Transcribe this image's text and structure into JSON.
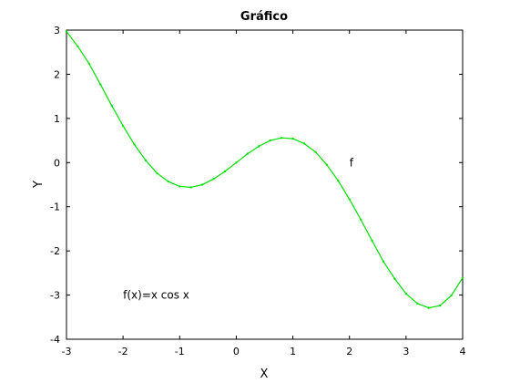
{
  "chart_data": {
    "type": "line",
    "title": "Gráfico",
    "xlabel": "X",
    "ylabel": "Y",
    "xlim": [
      -3,
      4
    ],
    "ylim": [
      -4,
      3
    ],
    "grid": false,
    "x_ticks": [
      "-3",
      "-2",
      "-1",
      "0",
      "1",
      "2",
      "3",
      "4"
    ],
    "y_ticks": [
      "-4",
      "-3",
      "-2",
      "-1",
      "0",
      "1",
      "2",
      "3"
    ],
    "series": [
      {
        "color": "#00e000",
        "x": [
          -3,
          -2.8,
          -2.6,
          -2.4,
          -2.2,
          -2,
          -1.8,
          -1.6,
          -1.4,
          -1.2,
          -1,
          -0.8,
          -0.6,
          -0.4,
          -0.2,
          0,
          0.2,
          0.4,
          0.6,
          0.8,
          1,
          1.2,
          1.4,
          1.6,
          1.8,
          2,
          2.2,
          2.4,
          2.6,
          2.8,
          3,
          3.2,
          3.4,
          3.6,
          3.8,
          4
        ],
        "y": [
          2.97,
          2.63,
          2.24,
          1.77,
          1.29,
          0.83,
          0.41,
          0.05,
          -0.24,
          -0.43,
          -0.54,
          -0.56,
          -0.5,
          -0.37,
          -0.2,
          0,
          0.2,
          0.37,
          0.5,
          0.56,
          0.54,
          0.43,
          0.24,
          -0.05,
          -0.41,
          -0.83,
          -1.29,
          -1.77,
          -2.24,
          -2.63,
          -2.97,
          -3.19,
          -3.29,
          -3.24,
          -3.01,
          -2.61
        ]
      }
    ],
    "annotations": [
      {
        "text": "f",
        "x": 2.0,
        "y": 0.0
      },
      {
        "text": "f(x)=x cos x",
        "x": -2.0,
        "y": -3.0
      }
    ]
  }
}
